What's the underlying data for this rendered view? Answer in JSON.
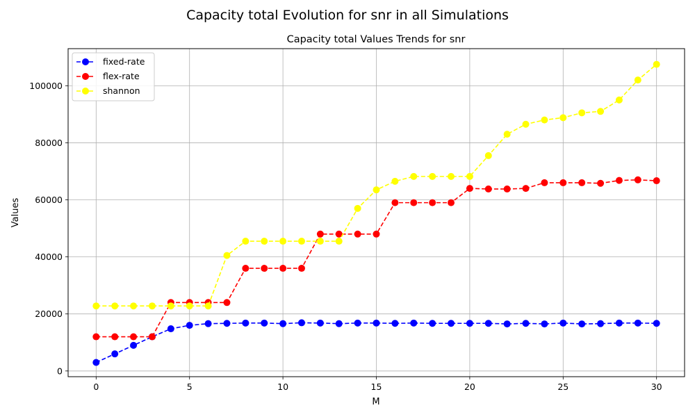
{
  "figure_title": "Capacity total Evolution for snr in all Simulations",
  "chart_data": {
    "type": "line",
    "title": "Capacity total Values Trends for snr",
    "xlabel": "M",
    "ylabel": "Values",
    "xlim": [
      -1.5,
      31.5
    ],
    "ylim": [
      -2000,
      113000
    ],
    "xticks": [
      0,
      5,
      10,
      15,
      20,
      25,
      30
    ],
    "yticks": [
      0,
      20000,
      40000,
      60000,
      80000,
      100000
    ],
    "grid": true,
    "legend_position": "top-left",
    "x": [
      0,
      1,
      2,
      3,
      4,
      5,
      6,
      7,
      8,
      9,
      10,
      11,
      12,
      13,
      14,
      15,
      16,
      17,
      18,
      19,
      20,
      21,
      22,
      23,
      24,
      25,
      26,
      27,
      28,
      29,
      30
    ],
    "series": [
      {
        "name": "fixed-rate",
        "color": "#0000ff",
        "values": [
          3000,
          6000,
          9000,
          12000,
          14800,
          16000,
          16600,
          16700,
          16800,
          16800,
          16600,
          16900,
          16800,
          16600,
          16800,
          16800,
          16700,
          16800,
          16700,
          16700,
          16700,
          16700,
          16500,
          16700,
          16500,
          16800,
          16500,
          16600,
          16800,
          16800,
          16700
        ]
      },
      {
        "name": "flex-rate",
        "color": "#ff0000",
        "values": [
          12000,
          12000,
          12000,
          12000,
          24000,
          24000,
          24000,
          24000,
          36000,
          36000,
          36000,
          36000,
          48000,
          48000,
          48000,
          48000,
          59000,
          59000,
          59000,
          59000,
          64000,
          63800,
          63800,
          64000,
          66000,
          66000,
          66000,
          65800,
          66800,
          67000,
          66700
        ]
      },
      {
        "name": "shannon",
        "color": "#ffff00",
        "values": [
          22800,
          22800,
          22800,
          22800,
          22800,
          22800,
          22800,
          40500,
          45500,
          45500,
          45500,
          45500,
          45500,
          45500,
          57000,
          63500,
          66500,
          68200,
          68200,
          68200,
          68200,
          75500,
          83000,
          86500,
          88000,
          88800,
          90500,
          91000,
          95000,
          102000,
          107500
        ]
      }
    ]
  }
}
